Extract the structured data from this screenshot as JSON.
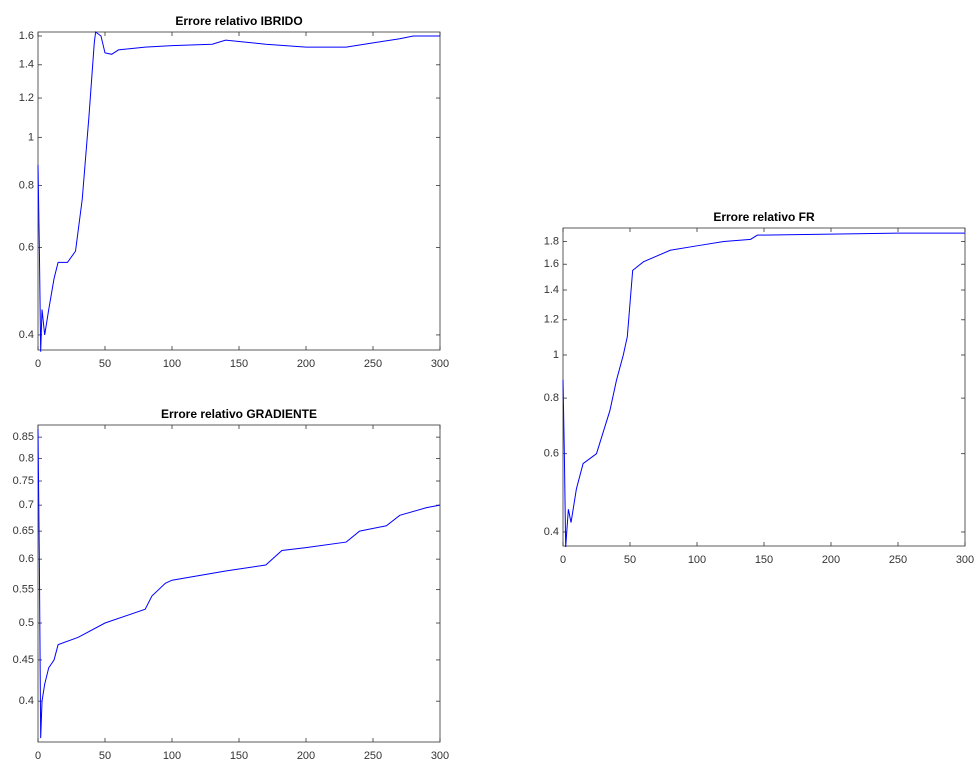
{
  "chart_data": [
    {
      "type": "line",
      "title": "Errore relativo IBRIDO",
      "log_y": true,
      "color": "#0000ff",
      "x": [
        0,
        1,
        2,
        3,
        5,
        8,
        12,
        15,
        22,
        28,
        33,
        38,
        42,
        43,
        47,
        50,
        55,
        60,
        80,
        100,
        130,
        140,
        150,
        170,
        200,
        230,
        250,
        270,
        280,
        300
      ],
      "values": [
        0.88,
        0.6,
        0.37,
        0.45,
        0.4,
        0.45,
        0.52,
        0.56,
        0.56,
        0.59,
        0.75,
        1.1,
        1.55,
        1.63,
        1.6,
        1.48,
        1.47,
        1.5,
        1.52,
        1.53,
        1.54,
        1.57,
        1.56,
        1.54,
        1.52,
        1.52,
        1.55,
        1.58,
        1.6,
        1.6
      ],
      "xlim": [
        0,
        300
      ],
      "xticks": [
        0,
        50,
        100,
        150,
        200,
        250,
        300
      ],
      "ylim": [
        0.373,
        1.63
      ],
      "yticks": [
        0.4,
        0.6,
        0.8,
        1,
        1.2,
        1.4,
        1.6
      ]
    },
    {
      "type": "line",
      "title": "Errore relativo GRADIENTE",
      "log_y": true,
      "color": "#0000ff",
      "x": [
        0,
        1,
        2,
        3,
        5,
        8,
        12,
        15,
        30,
        50,
        80,
        85,
        95,
        100,
        140,
        170,
        182,
        200,
        230,
        240,
        260,
        270,
        290,
        300
      ],
      "values": [
        0.87,
        0.6,
        0.36,
        0.4,
        0.42,
        0.44,
        0.45,
        0.47,
        0.48,
        0.5,
        0.52,
        0.54,
        0.56,
        0.565,
        0.58,
        0.59,
        0.615,
        0.62,
        0.63,
        0.65,
        0.66,
        0.68,
        0.695,
        0.7
      ],
      "xlim": [
        0,
        300
      ],
      "xticks": [
        0,
        50,
        100,
        150,
        200,
        250,
        300
      ],
      "ylim": [
        0.356,
        0.88
      ],
      "yticks": [
        0.4,
        0.45,
        0.5,
        0.55,
        0.6,
        0.65,
        0.7,
        0.75,
        0.8,
        0.85
      ]
    },
    {
      "type": "line",
      "title": "Errore relativo FR",
      "log_y": true,
      "color": "#0000ff",
      "x": [
        0,
        1,
        2,
        4,
        6,
        10,
        15,
        25,
        35,
        40,
        45,
        48,
        52,
        60,
        80,
        100,
        120,
        140,
        145,
        200,
        250,
        300
      ],
      "values": [
        0.88,
        0.6,
        0.37,
        0.45,
        0.42,
        0.5,
        0.57,
        0.6,
        0.75,
        0.88,
        1.0,
        1.1,
        1.55,
        1.62,
        1.72,
        1.76,
        1.8,
        1.82,
        1.86,
        1.87,
        1.88,
        1.88
      ],
      "xlim": [
        0,
        300
      ],
      "xticks": [
        0,
        50,
        100,
        150,
        200,
        250,
        300
      ],
      "ylim": [
        0.372,
        1.93
      ],
      "yticks": [
        0.4,
        0.6,
        0.8,
        1,
        1.2,
        1.4,
        1.6,
        1.8
      ]
    }
  ]
}
